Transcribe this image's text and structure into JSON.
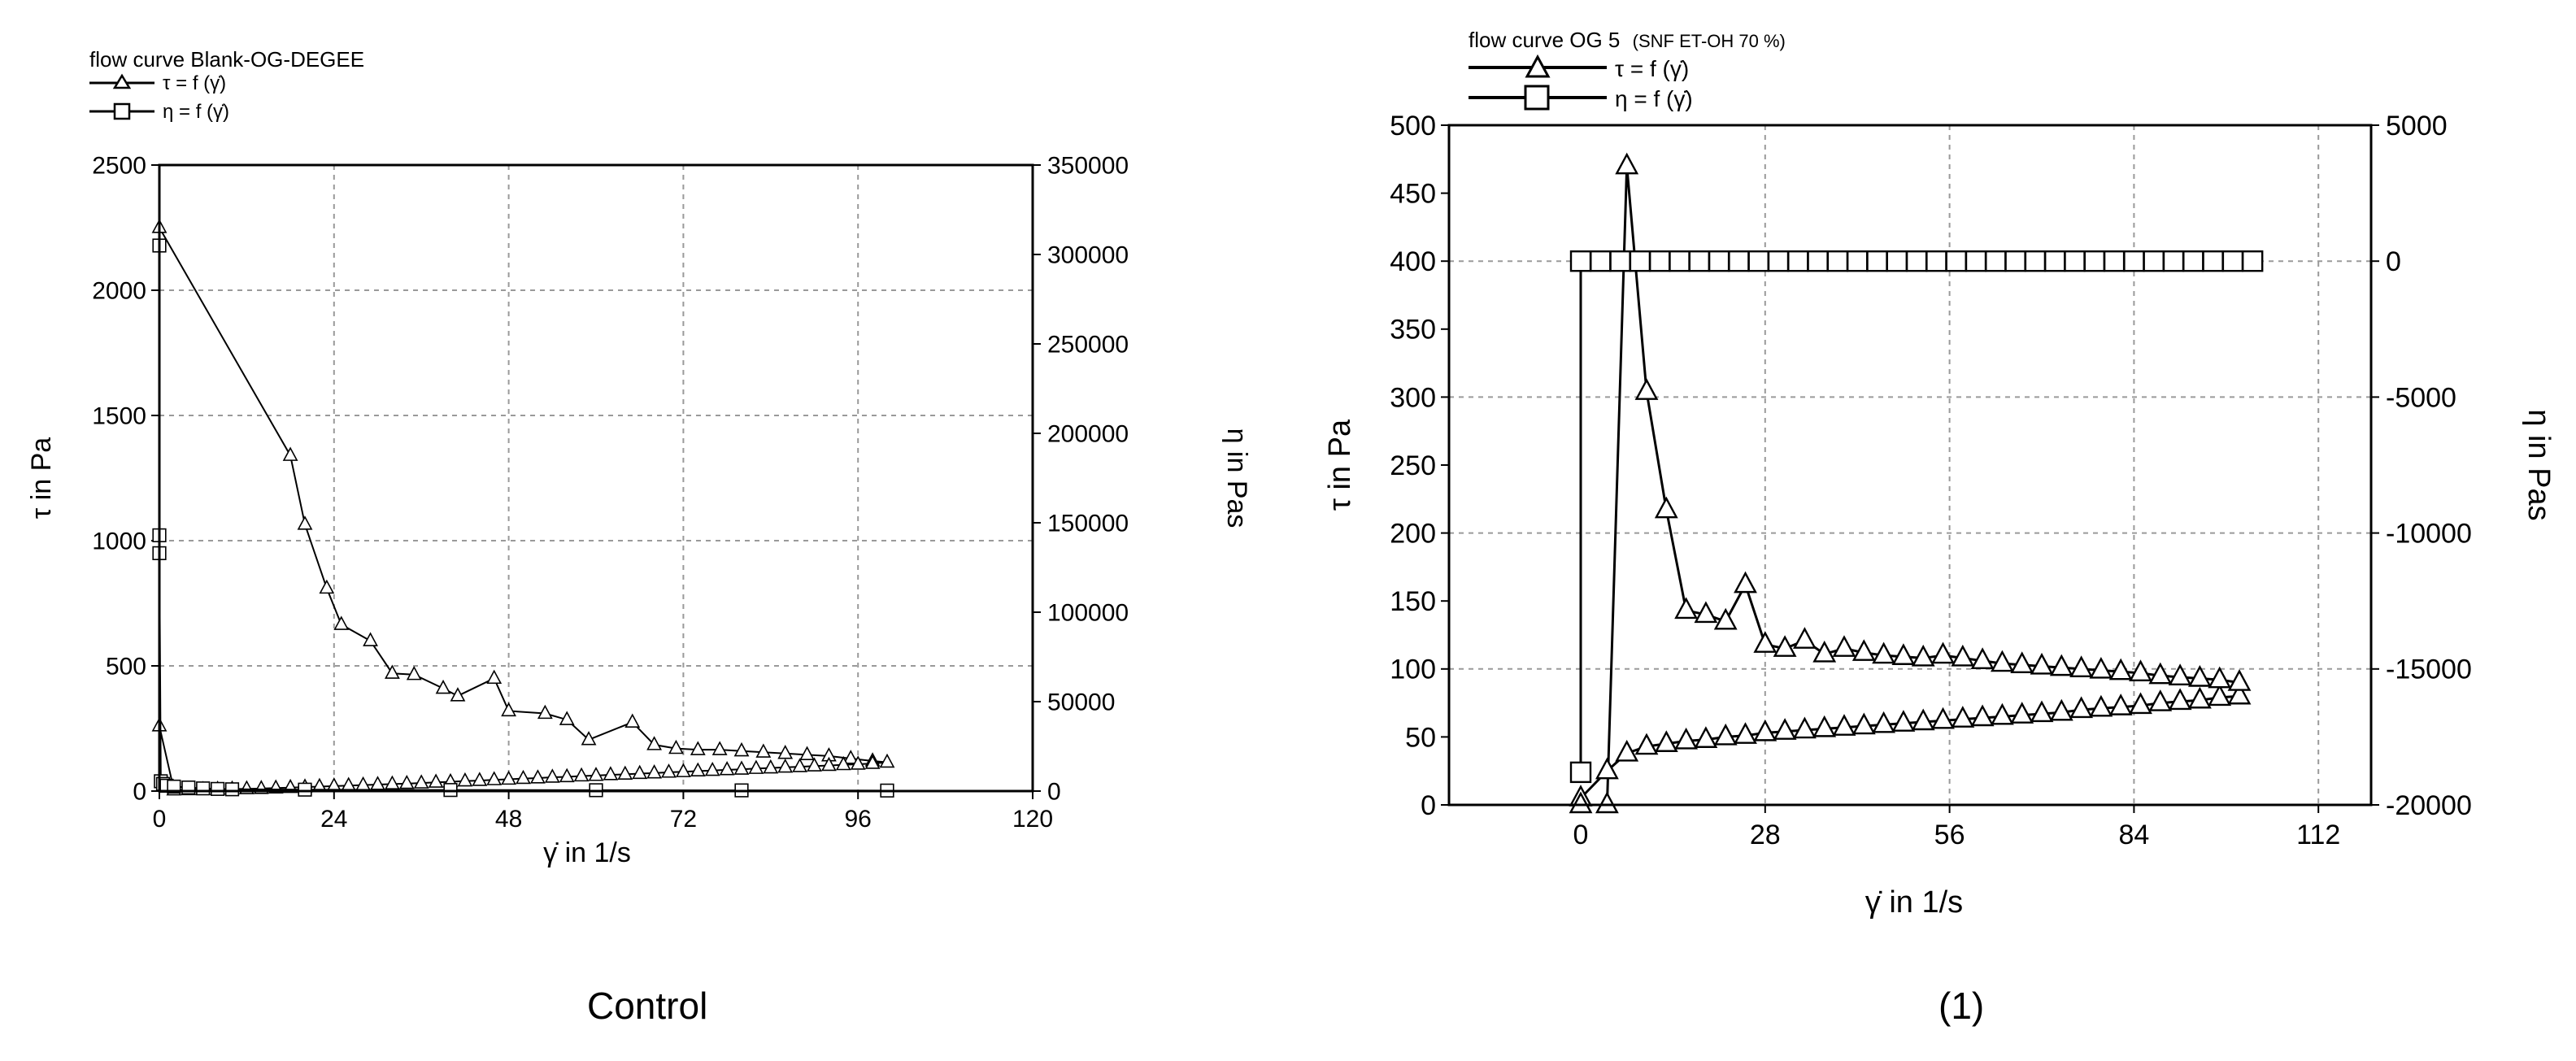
{
  "charts": [
    {
      "panel": "control",
      "title": "flow curve Blank-OG-DEGEE",
      "legend": [
        "τ = f (γ̇)",
        "η = f (γ̇)"
      ],
      "xlabel": "γ̇ in 1/s",
      "ylabel_left": "τ in Pa",
      "ylabel_right": "η in Pas",
      "caption": "Control",
      "xlim": [
        0,
        120
      ],
      "ylim_left": [
        0,
        2500
      ],
      "ylim_right": [
        0,
        350000
      ],
      "xticks": [
        "0",
        "24",
        "48",
        "72",
        "96",
        "120"
      ],
      "yticks_left": [
        "0",
        "500",
        "1000",
        "1500",
        "2000",
        "2500"
      ],
      "yticks_right": [
        "0",
        "50000",
        "100000",
        "150000",
        "200000",
        "250000",
        "300000",
        "350000"
      ]
    },
    {
      "panel": "1",
      "title": "flow curve OG 5",
      "title_suffix": "(SNF ET-OH 70 %)",
      "legend": [
        "τ = f (γ̇)",
        "η = f (γ̇)"
      ],
      "xlabel": "γ̇ in 1/s",
      "ylabel_left": "τ in Pa",
      "ylabel_right": "η in Pas",
      "caption": "(1)",
      "xlim": [
        -20,
        120
      ],
      "ylim_left": [
        0,
        500
      ],
      "ylim_right": [
        -20000,
        5000
      ],
      "xticks": [
        "0",
        "28",
        "56",
        "84",
        "112"
      ],
      "yticks_left": [
        "0",
        "50",
        "100",
        "150",
        "200",
        "250",
        "300",
        "350",
        "400",
        "450",
        "500"
      ],
      "yticks_right": [
        "-20000",
        "-15000",
        "-10000",
        "-5000",
        "0",
        "5000"
      ]
    }
  ],
  "chart_data": [
    {
      "type": "line",
      "title": "flow curve Blank-OG-DEGEE",
      "xlabel": "γ̇ in 1/s",
      "ylabel": "τ in Pa",
      "ylabel_right": "η in Pas",
      "xlim": [
        0,
        120
      ],
      "ylim": [
        0,
        2500
      ],
      "ylim_right": [
        0,
        350000
      ],
      "grid": true,
      "legend_position": "top-left",
      "series": [
        {
          "name": "τ = f (γ̇)",
          "marker": "triangle",
          "axis": "left",
          "x": [
            0,
            18,
            20,
            23,
            25,
            29,
            32,
            35,
            39,
            41,
            46,
            48,
            53,
            56,
            59,
            65,
            68,
            71,
            74,
            77,
            80,
            83,
            86,
            89,
            92,
            95,
            98,
            100,
            98,
            96,
            94,
            92,
            90,
            88,
            86,
            84,
            82,
            80,
            78,
            76,
            74,
            72,
            70,
            68,
            66,
            64,
            62,
            60,
            58,
            56,
            54,
            52,
            50,
            48,
            46,
            44,
            42,
            40,
            38,
            36,
            34,
            32,
            30,
            28,
            26,
            24,
            22,
            20,
            18,
            16,
            14,
            12,
            10,
            8,
            6,
            4,
            2,
            0
          ],
          "y": [
            2250,
            1340,
            1065,
            810,
            665,
            600,
            470,
            465,
            410,
            380,
            450,
            320,
            310,
            285,
            205,
            275,
            185,
            170,
            165,
            165,
            160,
            155,
            150,
            145,
            140,
            130,
            120,
            115,
            110,
            107,
            105,
            102,
            100,
            97,
            95,
            92,
            90,
            87,
            85,
            82,
            80,
            77,
            75,
            72,
            70,
            67,
            65,
            62,
            60,
            57,
            55,
            52,
            50,
            47,
            45,
            42,
            40,
            37,
            35,
            32,
            30,
            28,
            26,
            24,
            22,
            20,
            18,
            16,
            14,
            12,
            10,
            9,
            8,
            7,
            6,
            5,
            4,
            260
          ]
        },
        {
          "name": "η = f (γ̇)",
          "marker": "square",
          "axis": "right",
          "x": [
            0,
            0,
            0,
            0.2,
            0.5,
            1,
            2,
            4,
            6,
            8,
            10,
            20,
            40,
            60,
            80,
            100
          ],
          "y": [
            305000,
            143000,
            133000,
            5500,
            4000,
            3000,
            2500,
            2000,
            1500,
            1200,
            1000,
            800,
            600,
            500,
            400,
            300
          ]
        }
      ]
    },
    {
      "type": "line",
      "title": "flow curve OG 5 (SNF ET-OH 70 %)",
      "xlabel": "γ̇ in 1/s",
      "ylabel": "τ in Pa",
      "ylabel_right": "η in Pas",
      "xlim": [
        -20,
        120
      ],
      "ylim": [
        0,
        500
      ],
      "ylim_right": [
        -20000,
        5000
      ],
      "grid": true,
      "legend_position": "top-left",
      "series": [
        {
          "name": "τ = f (γ̇)",
          "marker": "triangle",
          "axis": "left",
          "x": [
            0,
            4,
            7,
            10,
            13,
            16,
            19,
            22,
            25,
            28,
            31,
            34,
            37,
            40,
            43,
            46,
            49,
            52,
            55,
            58,
            61,
            64,
            67,
            70,
            73,
            76,
            79,
            82,
            85,
            88,
            91,
            94,
            97,
            100,
            100,
            97,
            94,
            91,
            88,
            85,
            82,
            79,
            76,
            73,
            70,
            67,
            64,
            61,
            58,
            55,
            52,
            49,
            46,
            43,
            40,
            37,
            34,
            31,
            28,
            25,
            22,
            19,
            16,
            13,
            10,
            7,
            4,
            0
          ],
          "y": [
            5,
            25,
            38,
            43,
            45,
            47,
            48,
            50,
            51,
            53,
            54,
            55,
            56,
            57,
            58,
            59,
            60,
            61,
            62,
            63,
            64,
            65,
            66,
            67,
            68,
            70,
            71,
            72,
            73,
            75,
            76,
            77,
            79,
            80,
            90,
            92,
            93,
            94,
            95,
            97,
            98,
            99,
            100,
            101,
            102,
            103,
            104,
            106,
            108,
            110,
            108,
            109,
            110,
            112,
            115,
            111,
            121,
            115,
            118,
            162,
            135,
            140,
            143,
            217,
            304,
            470,
            0,
            0
          ]
        },
        {
          "name": "η = f (γ̇)",
          "marker": "square",
          "axis": "right",
          "x": [
            0,
            0,
            3,
            6,
            9,
            12,
            15,
            18,
            21,
            24,
            27,
            30,
            33,
            36,
            39,
            42,
            45,
            48,
            51,
            54,
            57,
            60,
            63,
            66,
            69,
            72,
            75,
            78,
            81,
            84,
            87,
            90,
            93,
            96,
            99,
            102
          ],
          "y": [
            -18800,
            0,
            0,
            0,
            0,
            0,
            0,
            0,
            0,
            0,
            0,
            0,
            0,
            0,
            0,
            0,
            0,
            0,
            0,
            0,
            0,
            0,
            0,
            0,
            0,
            0,
            0,
            0,
            0,
            0,
            0,
            0,
            0,
            0,
            0,
            0
          ]
        }
      ]
    }
  ]
}
